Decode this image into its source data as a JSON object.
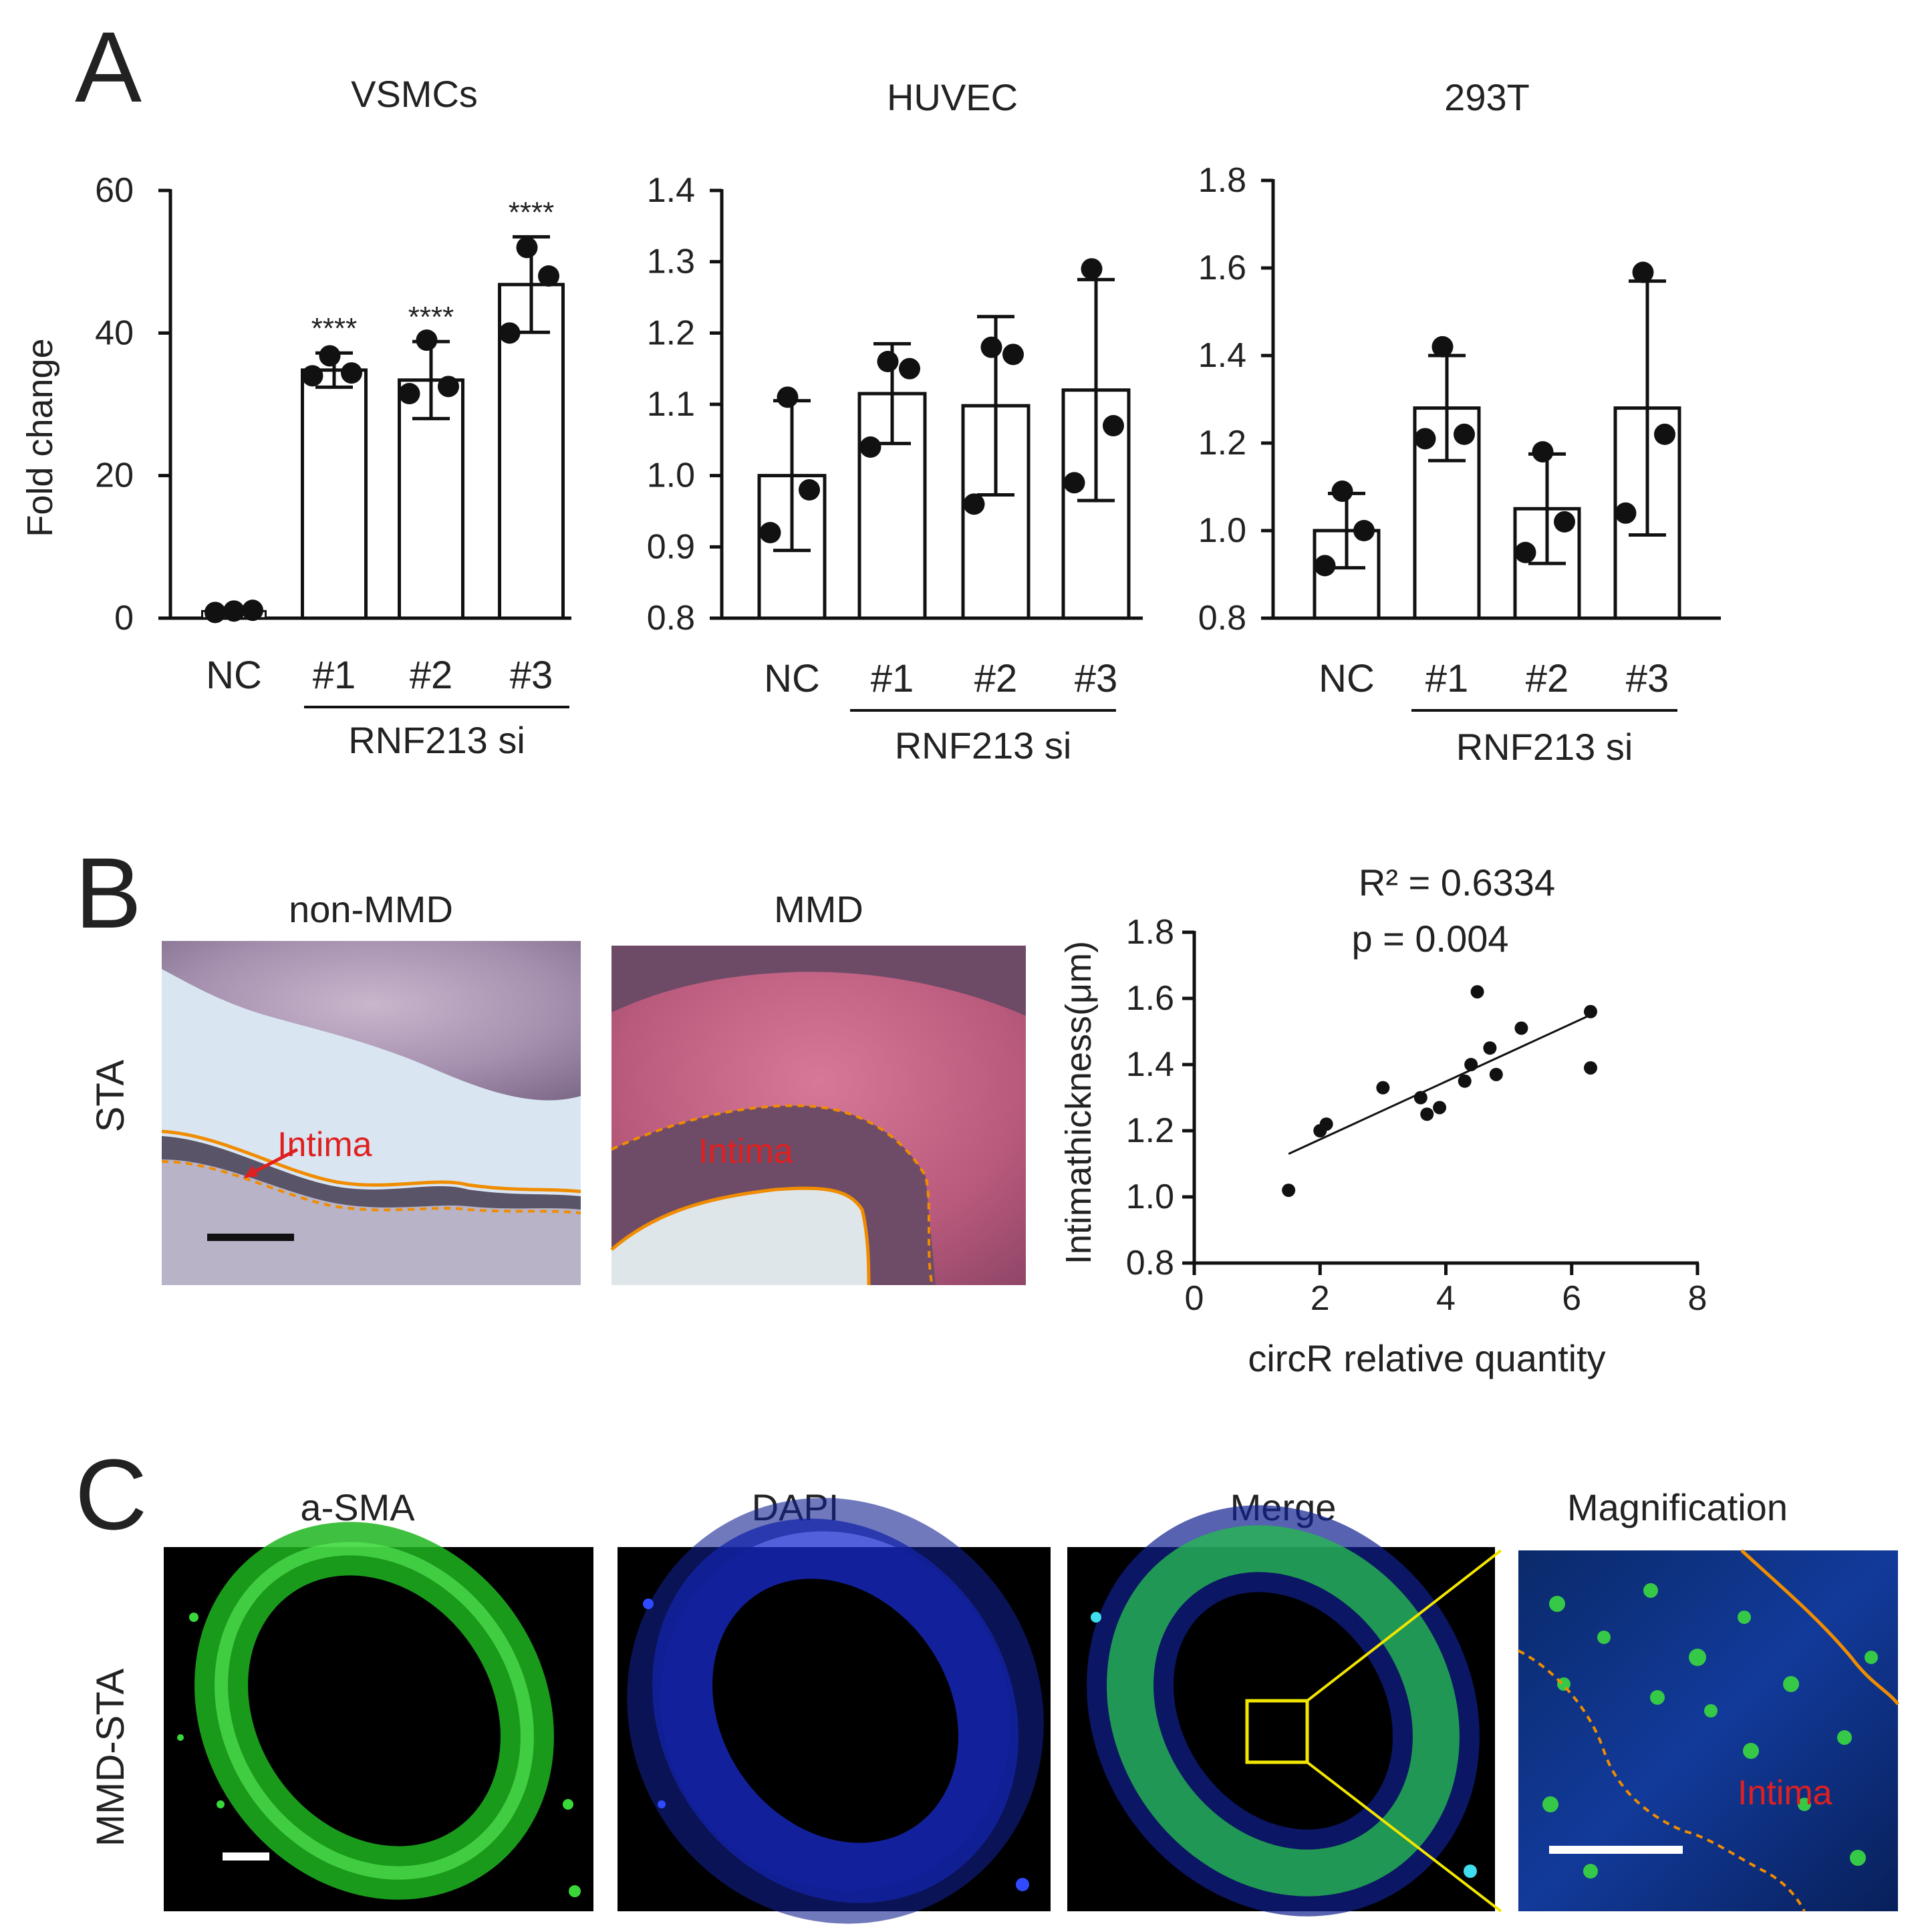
{
  "panels": {
    "A": "A",
    "B": "B",
    "C": "C"
  },
  "chart_data": [
    {
      "type": "bar",
      "title": "VSMCs",
      "ylabel": "Fold change",
      "categories": [
        "NC",
        "#1",
        "#2",
        "#3"
      ],
      "group_label": "RNF213 si",
      "values": [
        1.0,
        34.8,
        33.4,
        46.8
      ],
      "errors": [
        0.3,
        2.4,
        5.4,
        6.7
      ],
      "points": [
        [
          0.8,
          1.0,
          1.1
        ],
        [
          34.0,
          34.4,
          36.8
        ],
        [
          31.5,
          32.5,
          39.0
        ],
        [
          40.0,
          48.0,
          52.0
        ]
      ],
      "significance": [
        "",
        "****",
        "****",
        "****"
      ],
      "ylim": [
        0,
        60
      ],
      "yticks": [
        0,
        20,
        40,
        60
      ]
    },
    {
      "type": "bar",
      "title": "HUVEC",
      "categories": [
        "NC",
        "#1",
        "#2",
        "#3"
      ],
      "group_label": "RNF213 si",
      "values": [
        1.0,
        1.115,
        1.098,
        1.12
      ],
      "errors": [
        0.105,
        0.07,
        0.125,
        0.155
      ],
      "points": [
        [
          0.92,
          0.98,
          1.11
        ],
        [
          1.04,
          1.15,
          1.16
        ],
        [
          0.96,
          1.17,
          1.18
        ],
        [
          0.99,
          1.07,
          1.29
        ]
      ],
      "ylim": [
        0.8,
        1.4
      ],
      "yticks": [
        0.8,
        0.9,
        1.0,
        1.1,
        1.2,
        1.3,
        1.4
      ]
    },
    {
      "type": "bar",
      "title": "293T",
      "categories": [
        "NC",
        "#1",
        "#2",
        "#3"
      ],
      "group_label": "RNF213 si",
      "values": [
        1.0,
        1.28,
        1.05,
        1.28
      ],
      "errors": [
        0.085,
        0.12,
        0.125,
        0.29
      ],
      "points": [
        [
          0.92,
          1.0,
          1.09
        ],
        [
          1.21,
          1.22,
          1.42
        ],
        [
          0.95,
          1.02,
          1.18
        ],
        [
          1.04,
          1.22,
          1.59
        ]
      ],
      "ylim": [
        0.8,
        1.8
      ],
      "yticks": [
        0.8,
        1.0,
        1.2,
        1.4,
        1.6,
        1.8
      ]
    },
    {
      "type": "scatter",
      "xlabel": "circR relative quantity",
      "ylabel": "Intimathickness(μm)",
      "annotations": [
        "R² = 0.6334",
        "p = 0.004"
      ],
      "xlim": [
        0,
        8
      ],
      "ylim": [
        0.8,
        1.8
      ],
      "xticks": [
        0,
        2,
        4,
        6,
        8
      ],
      "yticks": [
        0.8,
        1.0,
        1.2,
        1.4,
        1.6,
        1.8
      ],
      "x": [
        1.5,
        2.0,
        2.1,
        3.0,
        3.6,
        3.7,
        3.9,
        4.3,
        4.4,
        4.5,
        4.7,
        4.8,
        5.2,
        6.3,
        6.3
      ],
      "y": [
        1.02,
        1.2,
        1.22,
        1.33,
        1.3,
        1.25,
        1.27,
        1.35,
        1.4,
        1.62,
        1.45,
        1.37,
        1.51,
        1.56,
        1.39
      ],
      "fit": {
        "x0": 1.5,
        "y0": 1.13,
        "x1": 6.3,
        "y1": 1.55
      }
    }
  ],
  "panel_b_images": {
    "row_label": "STA",
    "titles": [
      "non-MMD",
      "MMD"
    ],
    "annotation": "Intima"
  },
  "panel_c_images": {
    "row_label": "MMD-STA",
    "titles": [
      "a-SMA",
      "DAPI",
      "Merge",
      "Magnification"
    ],
    "annotation": "Intima"
  }
}
